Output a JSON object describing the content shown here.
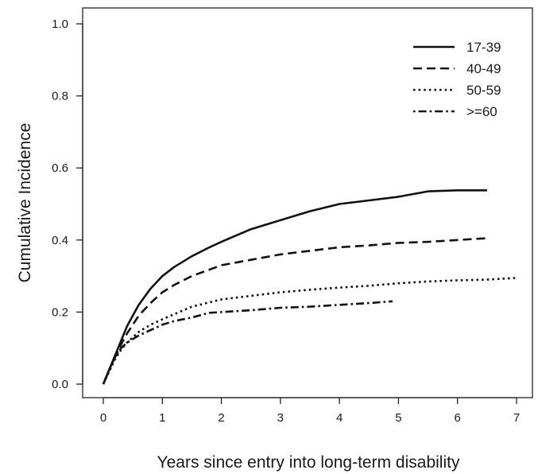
{
  "chart_data": {
    "type": "line",
    "xlabel": "Years since entry into long-term disability",
    "ylabel": "Cumulative Incidence",
    "xlim": [
      0,
      7
    ],
    "ylim": [
      0,
      1.0
    ],
    "x_ticks": [
      "0",
      "1",
      "2",
      "3",
      "4",
      "5",
      "6",
      "7"
    ],
    "y_ticks": [
      "0.0",
      "0.2",
      "0.4",
      "0.6",
      "0.8",
      "1.0"
    ],
    "grid": false,
    "legend_position": "top-right",
    "series": [
      {
        "name": "17-39",
        "style": "solid",
        "x": [
          0,
          0.1,
          0.2,
          0.3,
          0.4,
          0.5,
          0.6,
          0.8,
          1.0,
          1.2,
          1.5,
          1.8,
          2.0,
          2.5,
          3.0,
          3.5,
          4.0,
          4.5,
          5.0,
          5.5,
          6.0,
          6.5
        ],
        "y": [
          0.0,
          0.04,
          0.08,
          0.12,
          0.16,
          0.19,
          0.22,
          0.265,
          0.3,
          0.325,
          0.355,
          0.38,
          0.395,
          0.43,
          0.455,
          0.48,
          0.5,
          0.51,
          0.52,
          0.535,
          0.538,
          0.538
        ]
      },
      {
        "name": "40-49",
        "style": "dashed",
        "x": [
          0,
          0.1,
          0.2,
          0.3,
          0.4,
          0.5,
          0.6,
          0.8,
          1.0,
          1.2,
          1.5,
          2.0,
          2.5,
          3.0,
          3.5,
          4.0,
          4.5,
          5.0,
          5.5,
          6.0,
          6.5
        ],
        "y": [
          0.0,
          0.04,
          0.075,
          0.11,
          0.14,
          0.165,
          0.19,
          0.225,
          0.255,
          0.275,
          0.3,
          0.33,
          0.345,
          0.36,
          0.37,
          0.38,
          0.385,
          0.392,
          0.395,
          0.4,
          0.405
        ]
      },
      {
        "name": "50-59",
        "style": "dotted",
        "x": [
          0,
          0.1,
          0.2,
          0.3,
          0.4,
          0.5,
          0.6,
          0.8,
          1.0,
          1.5,
          2.0,
          2.5,
          3.0,
          3.5,
          4.0,
          4.5,
          5.0,
          5.5,
          6.0,
          6.5,
          7.0
        ],
        "y": [
          0.0,
          0.035,
          0.07,
          0.095,
          0.115,
          0.13,
          0.145,
          0.165,
          0.18,
          0.215,
          0.235,
          0.245,
          0.255,
          0.262,
          0.268,
          0.273,
          0.28,
          0.285,
          0.288,
          0.29,
          0.295
        ]
      },
      {
        "name": ">=60",
        "style": "dotdash",
        "x": [
          0,
          0.1,
          0.2,
          0.3,
          0.4,
          0.5,
          0.6,
          0.8,
          1.0,
          1.2,
          1.5,
          1.8,
          2.0,
          2.5,
          3.0,
          3.5,
          4.0,
          4.5,
          4.9
        ],
        "y": [
          0.0,
          0.04,
          0.075,
          0.1,
          0.115,
          0.125,
          0.135,
          0.15,
          0.165,
          0.175,
          0.185,
          0.198,
          0.2,
          0.205,
          0.212,
          0.215,
          0.22,
          0.225,
          0.23
        ]
      }
    ]
  }
}
